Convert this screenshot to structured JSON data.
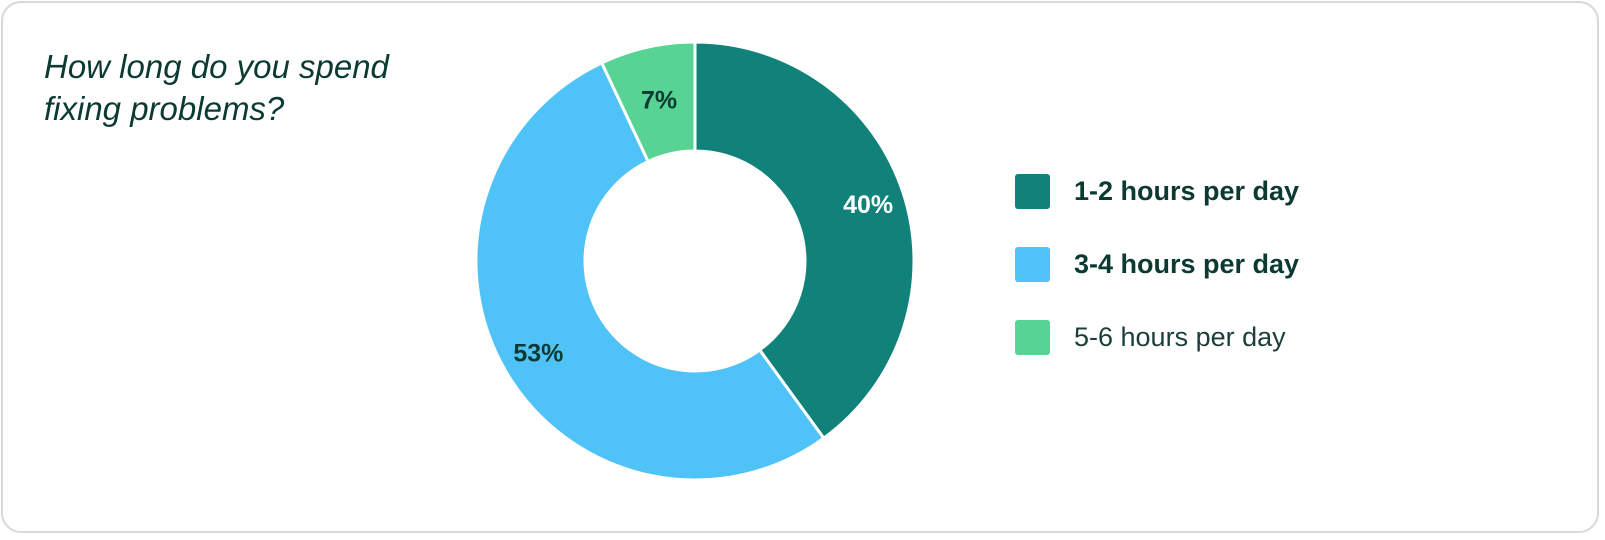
{
  "chart_data": {
    "type": "pie",
    "variant": "donut",
    "title": "How long do you spend fixing problems?",
    "categories": [
      "1-2 hours per day",
      "3-4 hours per day",
      "5-6 hours per day"
    ],
    "values": [
      40,
      53,
      7
    ],
    "labels": [
      "40%",
      "53%",
      "7%"
    ],
    "unit": "%",
    "colors": [
      "#10827a",
      "#4fc3f7",
      "#57d393"
    ],
    "label_colors": [
      "#ffffff",
      "#0b3a33",
      "#0b3a33"
    ],
    "legend": {
      "placement": "right",
      "items": [
        {
          "label": "1-2 hours per day",
          "color": "#10827a",
          "weight": "bold"
        },
        {
          "label": "3-4 hours per day",
          "color": "#4fc3f7",
          "weight": "bold"
        },
        {
          "label": "5-6 hours per day",
          "color": "#57d393",
          "weight": "normal"
        }
      ]
    }
  }
}
